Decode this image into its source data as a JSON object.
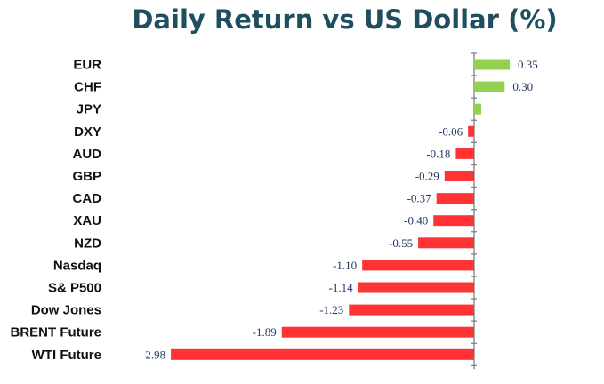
{
  "chart_data": {
    "type": "bar",
    "orientation": "horizontal",
    "title": "Daily Return vs US Dollar (%)",
    "categories": [
      "EUR",
      "CHF",
      "JPY",
      "DXY",
      "AUD",
      "GBP",
      "CAD",
      "XAU",
      "NZD",
      "Nasdaq",
      "S& P500",
      "Dow Jones",
      "BRENT Future",
      "WTI Future"
    ],
    "values": [
      0.35,
      0.3,
      0.07,
      -0.06,
      -0.18,
      -0.29,
      -0.37,
      -0.4,
      -0.55,
      -1.1,
      -1.14,
      -1.23,
      -1.89,
      -2.98
    ],
    "data_labels": [
      "0.35",
      "0.30",
      "",
      "-0.06",
      "-0.18",
      "-0.29",
      "-0.37",
      "-0.40",
      "-0.55",
      "-1.10",
      "-1.14",
      "-1.23",
      "-1.89",
      "-2.98"
    ],
    "xlim": [
      -3.0,
      0.4
    ],
    "grid": false,
    "legend": "none",
    "colors": {
      "positive": "#92D050",
      "negative": "#FF3333",
      "title": "#1F4E5F",
      "value_label": "#1F3864",
      "axis": "#808080"
    }
  }
}
